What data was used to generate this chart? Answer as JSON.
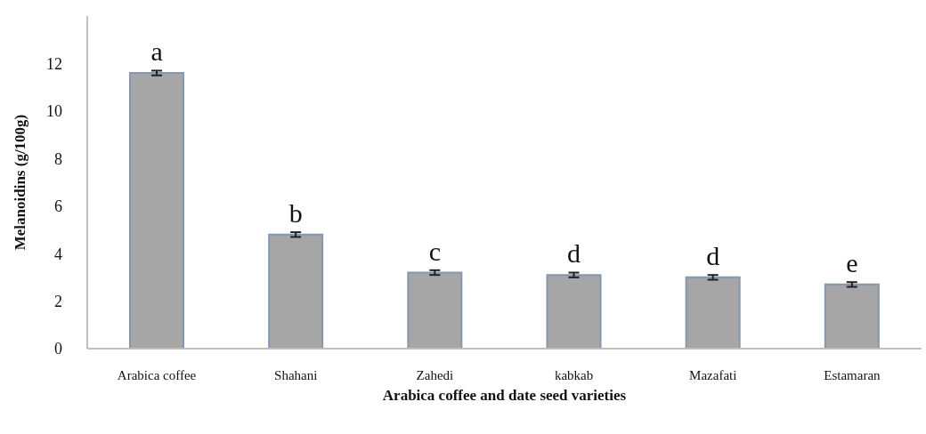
{
  "chart_data": {
    "type": "bar",
    "xlabel": "Arabica coffee and date seed varieties",
    "ylabel": "Melanoidins (g/100g)",
    "categories": [
      "Arabica  coffee",
      "Shahani",
      "Zahedi",
      "kabkab",
      "Mazafati",
      "Estamaran"
    ],
    "values": [
      11.6,
      4.8,
      3.2,
      3.1,
      3.0,
      2.7
    ],
    "errors": [
      0.1,
      0.1,
      0.1,
      0.1,
      0.1,
      0.1
    ],
    "color": "#a6a6a6",
    "ylim": [
      0,
      14
    ],
    "yticks": [
      0,
      2,
      4,
      6,
      8,
      10,
      12
    ],
    "grid": false,
    "annotations": [
      {
        "text": "a",
        "x": "Arabica  coffee",
        "y": 11.6
      },
      {
        "text": "b",
        "x": "Shahani",
        "y": 4.8
      },
      {
        "text": "c",
        "x": "Zahedi",
        "y": 3.2
      },
      {
        "text": "d",
        "x": "kabkab",
        "y": 3.1
      },
      {
        "text": "d",
        "x": "Mazafati",
        "y": 3.0
      },
      {
        "text": "e",
        "x": "Estamaran",
        "y": 2.7
      }
    ]
  }
}
